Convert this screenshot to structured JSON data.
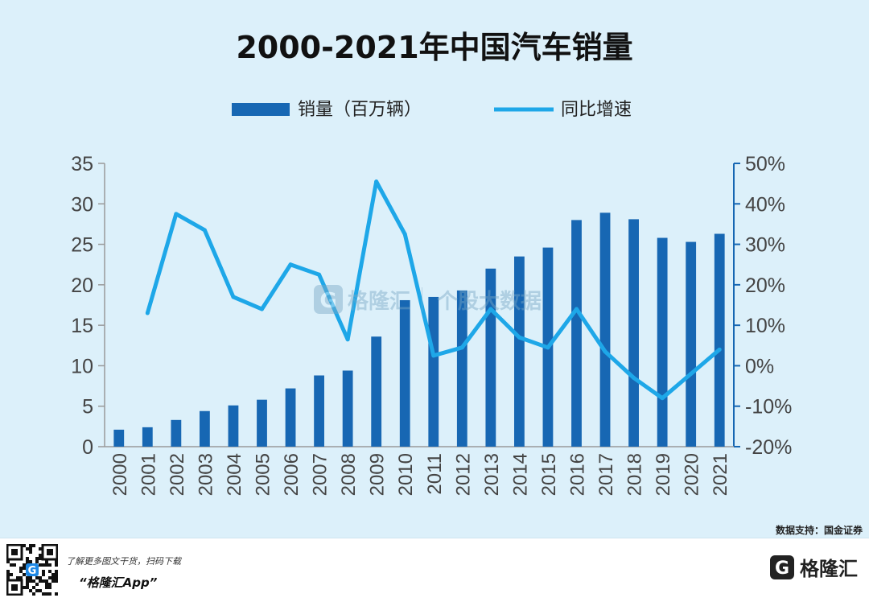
{
  "title": "2000-2021年中国汽车销量",
  "source": "数据支持：国金证券",
  "watermark": {
    "brand": "格隆汇",
    "tagline": "个股大数据"
  },
  "footer": {
    "promo_line1": "了解更多图文干货，扫码下载",
    "promo_line2": "“格隆汇App”",
    "brand": "格隆汇",
    "qr_icon": "qr-code"
  },
  "colors": {
    "bar": "#1767b3",
    "line": "#1ea7e8",
    "background": "#dcf0fa",
    "axis": "#1767b3"
  },
  "chart_data": {
    "type": "bar",
    "categories": [
      "2000",
      "2001",
      "2002",
      "2003",
      "2004",
      "2005",
      "2006",
      "2007",
      "2008",
      "2009",
      "2010",
      "2011",
      "2012",
      "2013",
      "2014",
      "2015",
      "2016",
      "2017",
      "2018",
      "2019",
      "2020",
      "2021"
    ],
    "series": [
      {
        "name": "销量（百万辆）",
        "type": "bar",
        "axis": "left",
        "values": [
          2.1,
          2.4,
          3.3,
          4.4,
          5.1,
          5.8,
          7.2,
          8.8,
          9.4,
          13.6,
          18.1,
          18.5,
          19.3,
          22.0,
          23.5,
          24.6,
          28.0,
          28.9,
          28.1,
          25.8,
          25.3,
          26.3
        ]
      },
      {
        "name": "同比增速",
        "type": "line",
        "axis": "right",
        "values": [
          null,
          13,
          37.5,
          33.5,
          17,
          14,
          25,
          22.5,
          6.5,
          45.5,
          32.5,
          2.5,
          4.5,
          14,
          7,
          4.5,
          14,
          3.5,
          -3,
          -8,
          -2,
          4
        ]
      }
    ],
    "y_left": {
      "min": 0,
      "max": 35,
      "ticks": [
        "0",
        "5",
        "10",
        "15",
        "20",
        "25",
        "30",
        "35"
      ]
    },
    "y_right": {
      "min": -20,
      "max": 50,
      "ticks": [
        "-20%",
        "-10%",
        "0%",
        "10%",
        "20%",
        "30%",
        "40%",
        "50%"
      ]
    },
    "legend_position": "top-center",
    "grid": false
  }
}
